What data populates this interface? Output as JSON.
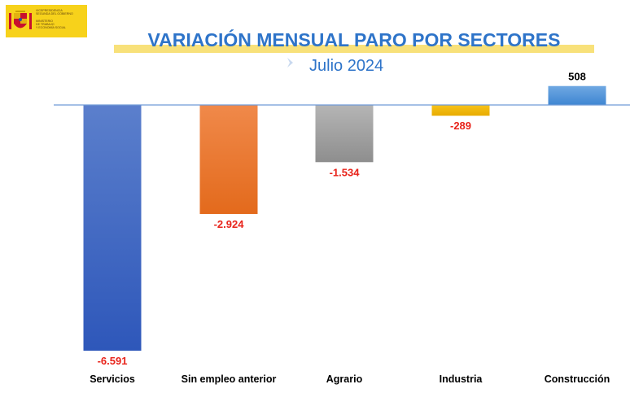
{
  "logo": {
    "lines": "Vicepresidencia\nSegunda del Gobierno\n\nMinisterio\nde Trabajo\ny Economía Social"
  },
  "header": {
    "title": "VARIACIÓN MENSUAL PARO POR SECTORES",
    "subtitle": "Julio 2024"
  },
  "colors": {
    "title": "#2e74c9",
    "negative_label": "#e8231a",
    "positive_label": "#000000",
    "baseline": "#6f9bd6"
  },
  "chart_data": {
    "type": "bar",
    "title": "VARIACIÓN MENSUAL PARO POR SECTORES",
    "subtitle": "Julio 2024",
    "categories": [
      "Servicios",
      "Sin empleo anterior",
      "Agrario",
      "Industria",
      "Construcción"
    ],
    "values": [
      -6591,
      -2924,
      -1534,
      -289,
      508
    ],
    "value_labels": [
      "-6.591",
      "-2.924",
      "-1.534",
      "-289",
      "508"
    ],
    "bar_colors": [
      [
        "#5b7fcc",
        "#2e57ba"
      ],
      [
        "#f0894a",
        "#e36a1c"
      ],
      [
        "#b5b5b5",
        "#8e8e8e"
      ],
      [
        "#f7c21a",
        "#e8ac00"
      ],
      [
        "#6fa8e2",
        "#3f86d2"
      ]
    ],
    "ylim": [
      -6591,
      508
    ],
    "grid": false,
    "legend": "none"
  }
}
